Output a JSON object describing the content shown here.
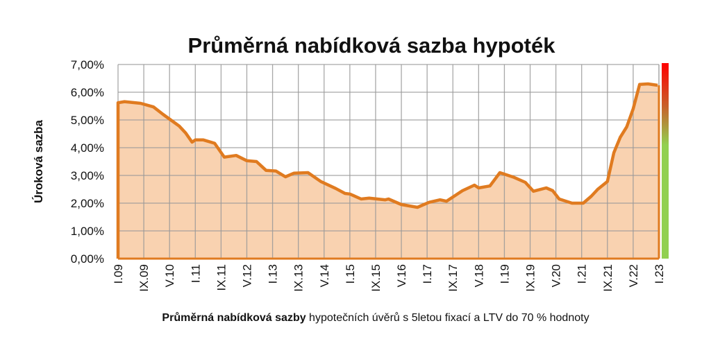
{
  "chart_data": {
    "type": "area",
    "title": "Průměrná nabídková sazba hypoték",
    "xlabel": "",
    "ylabel": "Úroková sazba",
    "caption_bold": "Průměrná nabídková sazby",
    "caption_rest": " hypotečních úvěrů s 5letou fixací a LTV do 70 % hodnoty",
    "ylim": [
      0,
      7
    ],
    "yticks": [
      "0,00%",
      "1,00%",
      "2,00%",
      "3,00%",
      "4,00%",
      "5,00%",
      "6,00%",
      "7,00%"
    ],
    "xticks": [
      "I.09",
      "IX.09",
      "V.10",
      "I.11",
      "IX.11",
      "V.12",
      "I.13",
      "IX.13",
      "V.14",
      "I.15",
      "IX.15",
      "V.16",
      "I.17",
      "IX.17",
      "V.18",
      "I.19",
      "IX.19",
      "V.20",
      "I.21",
      "IX.21",
      "V.22",
      "I.23"
    ],
    "x_unit": "months since I.09",
    "xlim": [
      0,
      168
    ],
    "grid": true,
    "series": [
      {
        "name": "Průměrná nabídková sazba",
        "color": "#e07b20",
        "fill": "#f9d2b0",
        "x": [
          0,
          2,
          7,
          11,
          14,
          19,
          21,
          23,
          24,
          26.5,
          30,
          33,
          36.7,
          40,
          43,
          46,
          49,
          52,
          54.6,
          59,
          63,
          67.6,
          70.5,
          72,
          75.5,
          78,
          83,
          84,
          88,
          93,
          96.6,
          100,
          102,
          107,
          110.7,
          112,
          115.5,
          118.6,
          123,
          126.5,
          129,
          133,
          135,
          137,
          141,
          144.5,
          147,
          149,
          152,
          154,
          156,
          158,
          160,
          162,
          164.6,
          167.6
        ],
        "y": [
          5.62,
          5.66,
          5.6,
          5.47,
          5.2,
          4.78,
          4.53,
          4.2,
          4.28,
          4.28,
          4.16,
          3.66,
          3.72,
          3.53,
          3.5,
          3.18,
          3.16,
          2.95,
          3.08,
          3.1,
          2.78,
          2.53,
          2.35,
          2.33,
          2.15,
          2.18,
          2.12,
          2.15,
          1.95,
          1.85,
          2.03,
          2.12,
          2.07,
          2.45,
          2.65,
          2.55,
          2.62,
          3.1,
          2.93,
          2.75,
          2.43,
          2.55,
          2.45,
          2.15,
          2.0,
          2.0,
          2.25,
          2.5,
          2.78,
          3.82,
          4.38,
          4.75,
          5.4,
          6.28,
          6.3,
          6.25
        ]
      }
    ],
    "colorbar": {
      "top": "#ff0000",
      "mid": "#c8602a",
      "bottom": "#92d050",
      "green_below": 4
    }
  }
}
